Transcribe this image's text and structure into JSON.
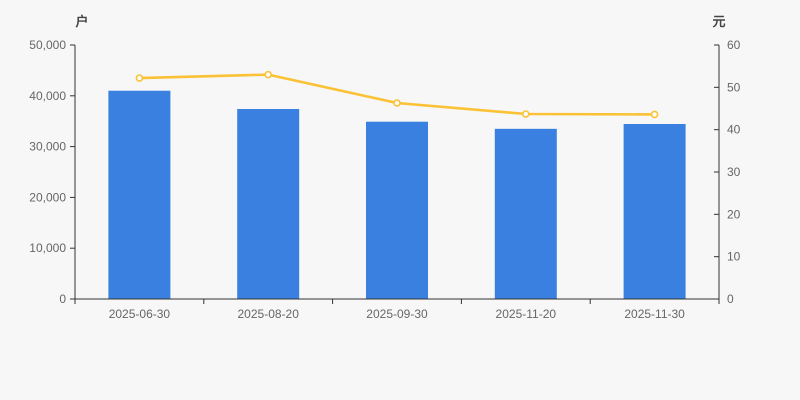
{
  "page": {
    "background_color": "#f7f7f7",
    "tick_label_color": "#666666",
    "axis_name_color": "#444444",
    "axis_line_color": "#333333"
  },
  "chart_data": {
    "type": "bar",
    "subtype": "bar-with-line-overlay",
    "categories": [
      "2025-06-30",
      "2025-08-20",
      "2025-09-30",
      "2025-11-20",
      "2025-11-30"
    ],
    "series": [
      {
        "type": "bar",
        "axis": "left",
        "color": "#3a80e1",
        "values": [
          41000,
          37400,
          34900,
          33500,
          34450
        ]
      },
      {
        "type": "line",
        "axis": "right",
        "color": "#fac234",
        "marker": "hollow-circle",
        "values": [
          52.2,
          53.0,
          46.3,
          43.7,
          43.6
        ]
      }
    ],
    "left_axis": {
      "name": "户",
      "min": 0,
      "max": 50000,
      "step": 10000,
      "tick_labels": [
        "0",
        "10,000",
        "20,000",
        "30,000",
        "40,000",
        "50,000"
      ]
    },
    "right_axis": {
      "name": "元",
      "min": 0,
      "max": 60,
      "step": 10,
      "tick_labels": [
        "0",
        "10",
        "20",
        "30",
        "40",
        "50",
        "60"
      ]
    },
    "grid": false,
    "legend": null,
    "title": ""
  }
}
